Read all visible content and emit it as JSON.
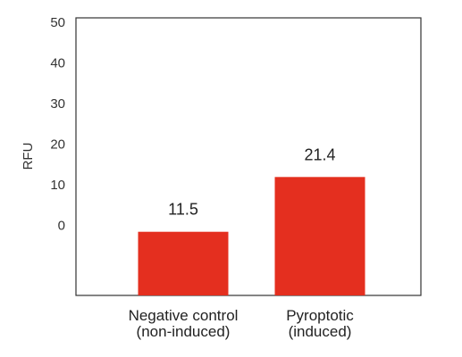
{
  "chart_data": {
    "type": "bar",
    "categories": [
      [
        "Negative control",
        "(non-induced)"
      ],
      [
        "Pyroptotic",
        "(induced)"
      ]
    ],
    "values": [
      11.5,
      21.4
    ],
    "data_labels": [
      "11.5",
      "21.4"
    ],
    "ytick_labels": [
      "50",
      "40",
      "30",
      "20",
      "10",
      "0"
    ],
    "ylabel": "RFU",
    "title": "",
    "xlabel": "",
    "bar_color": "#e42f1f",
    "grid": false,
    "legend": "none"
  }
}
